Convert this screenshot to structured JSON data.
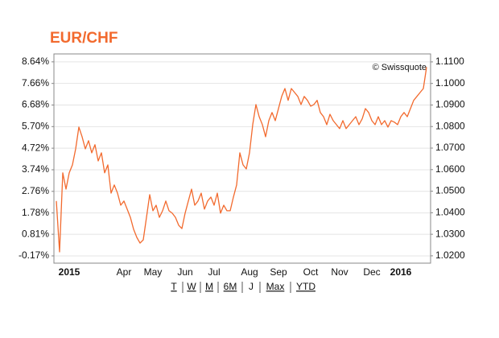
{
  "chart_data": {
    "type": "line",
    "title": "EUR/CHF",
    "annotation": "© Swissquote",
    "color": "#f26a2e",
    "grid": true,
    "categories": [
      null,
      null,
      null,
      null,
      "2015",
      null,
      null,
      null,
      null,
      null,
      null,
      null,
      null,
      null,
      null,
      null,
      null,
      null,
      null,
      null,
      null,
      "Apr",
      null,
      null,
      null,
      null,
      null,
      null,
      null,
      null,
      "May",
      null,
      null,
      null,
      null,
      null,
      null,
      null,
      null,
      null,
      "Jun",
      null,
      null,
      null,
      null,
      null,
      null,
      null,
      null,
      "Jul",
      null,
      null,
      null,
      null,
      null,
      null,
      null,
      null,
      null,
      null,
      "Aug",
      null,
      null,
      null,
      null,
      null,
      null,
      null,
      null,
      "Sep",
      null,
      null,
      null,
      null,
      null,
      null,
      null,
      null,
      null,
      "Oct",
      null,
      null,
      null,
      null,
      null,
      null,
      null,
      null,
      "Nov",
      null,
      null,
      null,
      null,
      null,
      null,
      null,
      null,
      null,
      "Dec",
      null,
      null,
      null,
      null,
      null,
      null,
      null,
      null,
      "2016",
      null,
      null,
      null,
      null,
      null,
      null,
      null,
      null
    ],
    "values": [
      2.32,
      0.01,
      3.6,
      2.86,
      3.6,
      3.96,
      4.69,
      5.68,
      5.24,
      4.69,
      5.06,
      4.51,
      4.88,
      4.14,
      4.51,
      3.6,
      3.96,
      2.68,
      3.05,
      2.68,
      2.13,
      2.32,
      1.95,
      1.58,
      1.04,
      0.67,
      0.41,
      0.56,
      1.58,
      2.61,
      1.88,
      2.13,
      1.58,
      1.88,
      2.32,
      1.88,
      1.77,
      1.58,
      1.22,
      1.07,
      1.77,
      2.32,
      2.86,
      2.13,
      2.32,
      2.68,
      1.95,
      2.32,
      2.5,
      2.13,
      2.68,
      1.77,
      2.13,
      1.88,
      1.88,
      2.5,
      3.05,
      4.51,
      3.96,
      3.78,
      4.51,
      5.79,
      6.7,
      6.15,
      5.79,
      5.24,
      5.97,
      6.34,
      5.97,
      6.52,
      7.07,
      7.43,
      6.89,
      7.43,
      7.25,
      7.07,
      6.7,
      7.07,
      6.89,
      6.63,
      6.7,
      6.89,
      6.34,
      6.15,
      5.79,
      6.26,
      5.97,
      5.79,
      5.61,
      5.97,
      5.61,
      5.79,
      5.97,
      6.15,
      5.79,
      6.05,
      6.52,
      6.34,
      5.97,
      5.79,
      6.15,
      5.79,
      5.97,
      5.68,
      5.97,
      5.9,
      5.79,
      6.15,
      6.34,
      6.15,
      6.52,
      6.89,
      7.07,
      7.25,
      7.43,
      8.4
    ],
    "ylim": [
      -0.5,
      9.0
    ],
    "yticks": [
      {
        "value": -0.17,
        "label": "-0.17%"
      },
      {
        "value": 0.81,
        "label": "0.81%"
      },
      {
        "value": 1.78,
        "label": "1.78%"
      },
      {
        "value": 2.76,
        "label": "2.76%"
      },
      {
        "value": 3.74,
        "label": "3.74%"
      },
      {
        "value": 4.72,
        "label": "4.72%"
      },
      {
        "value": 5.7,
        "label": "5.70%"
      },
      {
        "value": 6.68,
        "label": "6.68%"
      },
      {
        "value": 7.66,
        "label": "7.66%"
      },
      {
        "value": 8.64,
        "label": "8.64%"
      }
    ],
    "y2lim": [
      1.0166,
      1.1137
    ],
    "y2ticks": [
      {
        "value": 1.02,
        "label": "1.0200"
      },
      {
        "value": 1.03,
        "label": "1.0300"
      },
      {
        "value": 1.04,
        "label": "1.0400"
      },
      {
        "value": 1.05,
        "label": "1.0500"
      },
      {
        "value": 1.06,
        "label": "1.0600"
      },
      {
        "value": 1.07,
        "label": "1.0700"
      },
      {
        "value": 1.08,
        "label": "1.0800"
      },
      {
        "value": 1.09,
        "label": "1.0900"
      },
      {
        "value": 1.1,
        "label": "1.1000"
      },
      {
        "value": 1.11,
        "label": "1.1100"
      }
    ],
    "range_buttons": [
      "T",
      "W",
      "M",
      "6M",
      "J",
      "Max",
      "YTD"
    ],
    "range_selected": 4
  }
}
